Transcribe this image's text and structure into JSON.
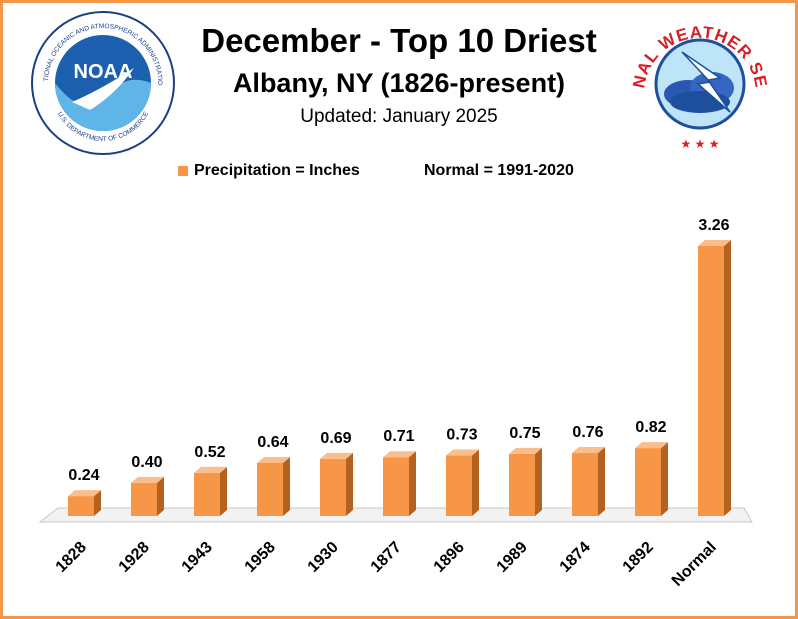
{
  "header": {
    "title": "December - Top 10 Driest",
    "subtitle": "Albany, NY (1826-present)",
    "updated": "Updated: January 2025"
  },
  "legend": {
    "series_label": "Precipitation = Inches",
    "normal_label": "Normal = 1991-2020"
  },
  "logos": {
    "noaa": {
      "text": "NOAA",
      "ring_top": "NATIONAL OCEANIC AND ATMOSPHERIC ADMINISTRATION",
      "ring_bottom": "U.S. DEPARTMENT OF COMMERCE"
    },
    "nws": {
      "ring_text": "NATIONAL WEATHER SERVICE"
    }
  },
  "colors": {
    "bar_front": "#f79646",
    "bar_side": "#b3621f",
    "bar_top": "#fbbd8c",
    "frame": "#f79646"
  },
  "chart_data": {
    "type": "bar",
    "categories": [
      "1828",
      "1928",
      "1943",
      "1958",
      "1930",
      "1877",
      "1896",
      "1989",
      "1874",
      "1892",
      "Normal"
    ],
    "values": [
      0.24,
      0.4,
      0.52,
      0.64,
      0.69,
      0.71,
      0.73,
      0.75,
      0.76,
      0.82,
      3.26
    ],
    "value_labels": [
      "0.24",
      "0.40",
      "0.52",
      "0.64",
      "0.69",
      "0.71",
      "0.73",
      "0.75",
      "0.76",
      "0.82",
      "3.26"
    ],
    "ylim": [
      0,
      3.26
    ],
    "grid": false,
    "legend": "top"
  }
}
